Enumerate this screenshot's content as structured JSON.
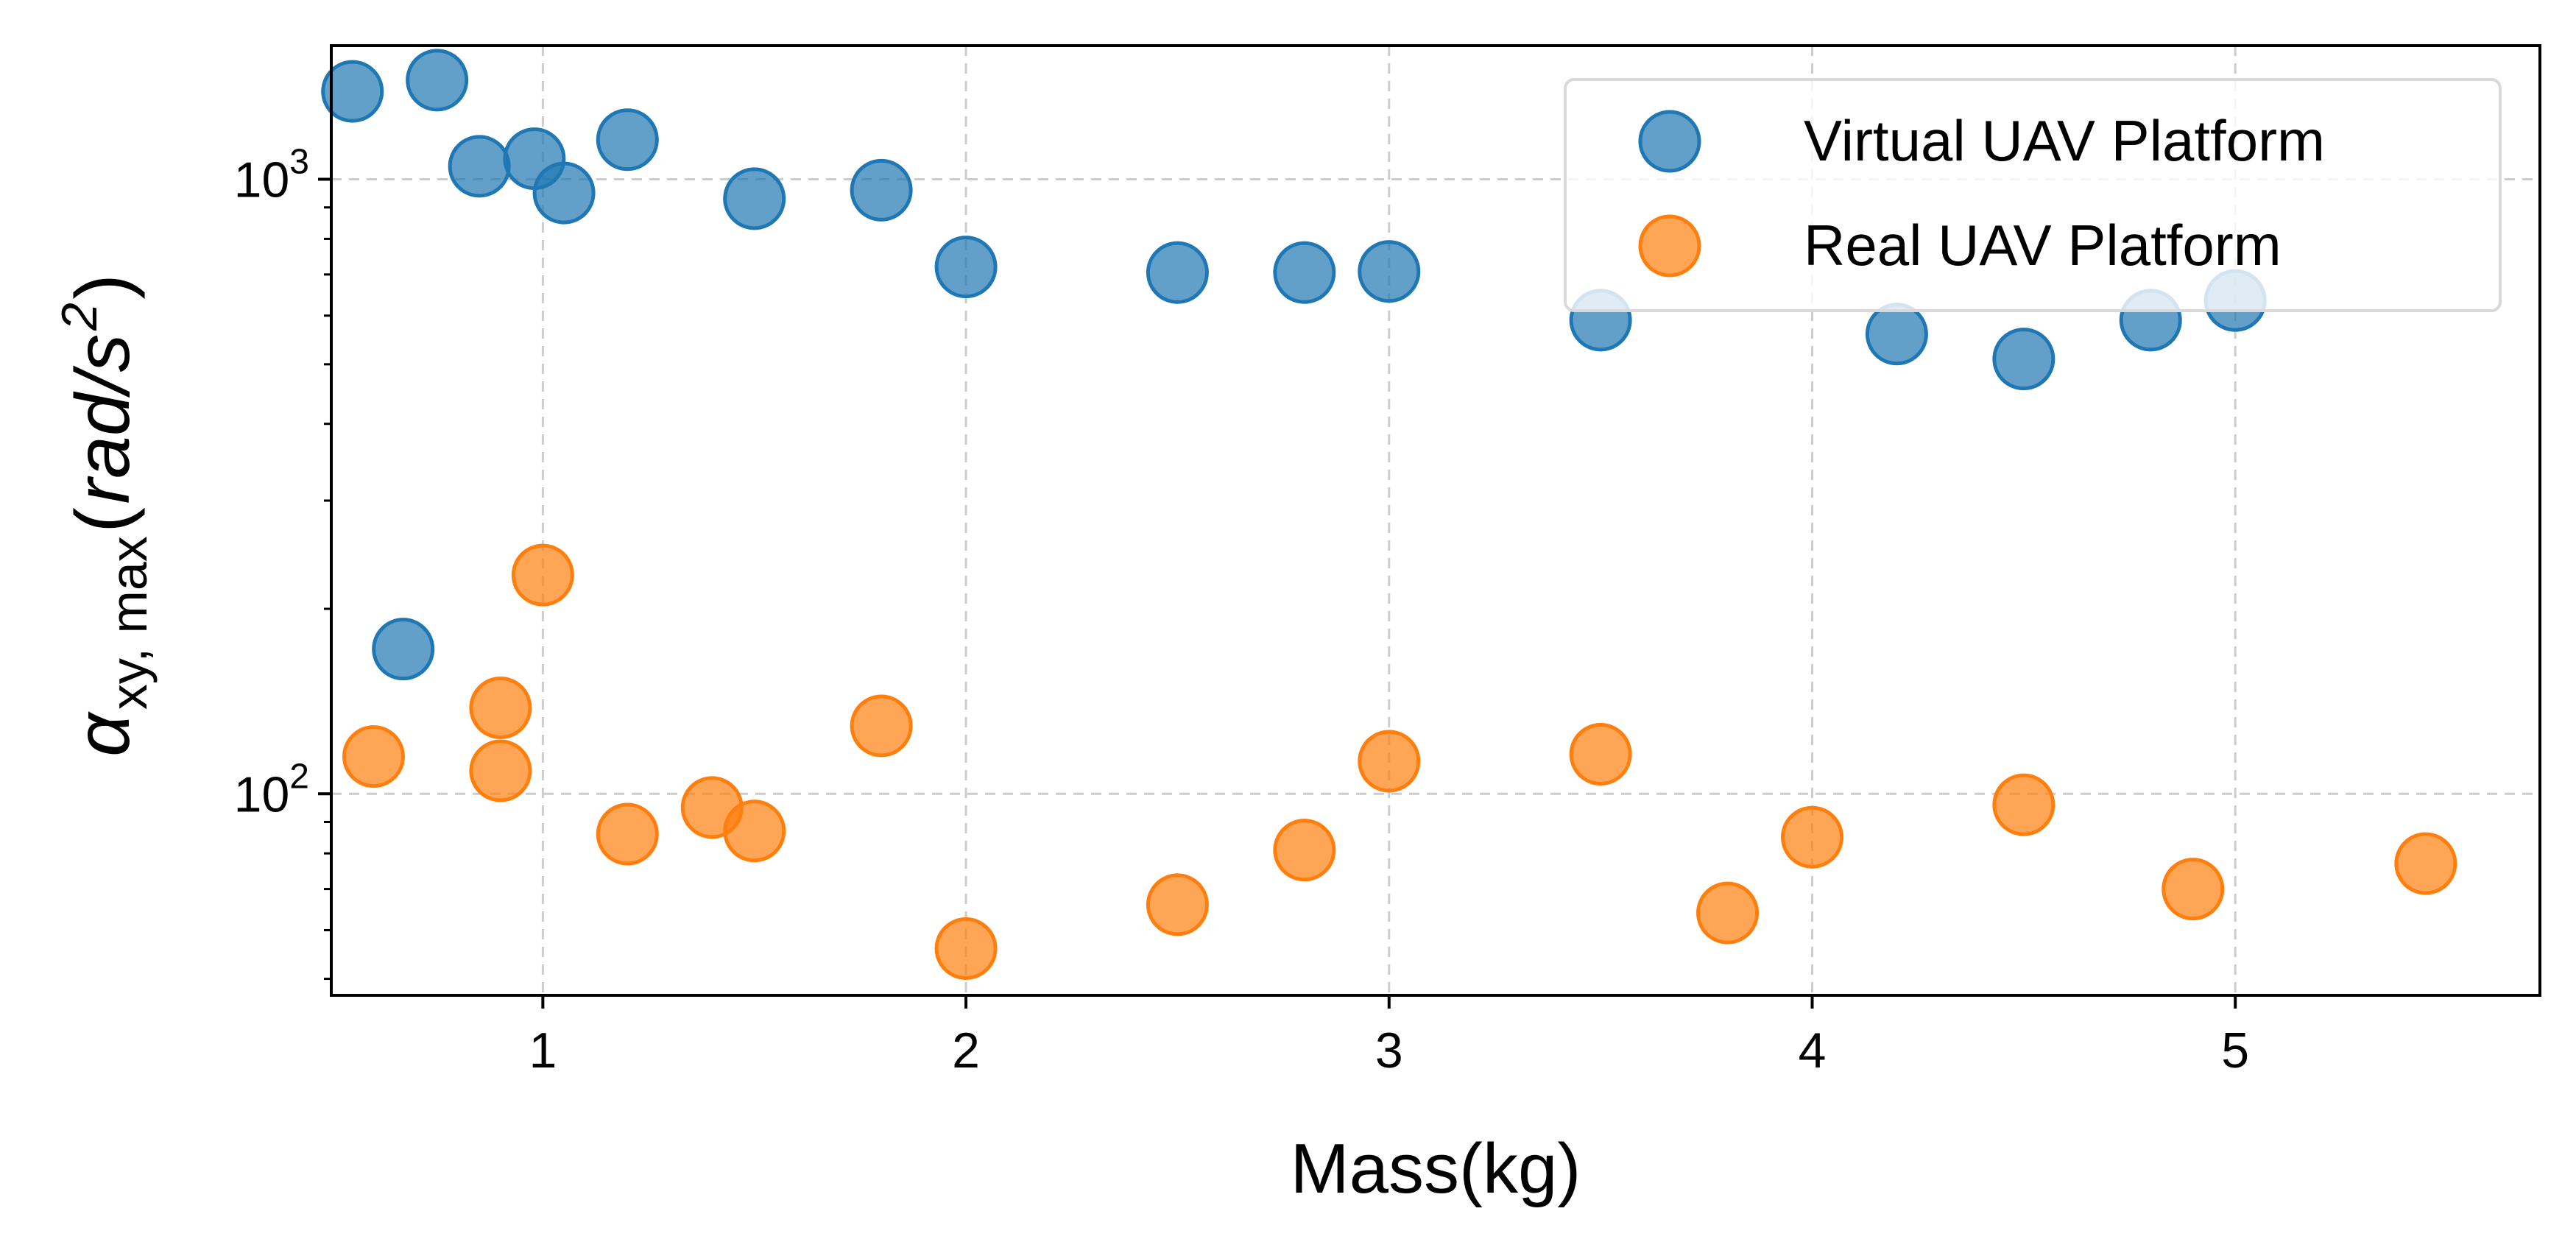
{
  "chart_data": {
    "type": "scatter",
    "title": "",
    "xlabel": "Mass(kg)",
    "ylabel": {
      "base": "α",
      "subscript": "xy, max",
      "unit_prefix": "(",
      "unit_italic": "rad/s",
      "unit_power": "2",
      "unit_suffix": ")"
    },
    "xlim": [
      0.5,
      5.72
    ],
    "ylim": [
      47,
      1650
    ],
    "yscale": "log",
    "grid": true,
    "legend_position": "top-right",
    "xticks": [
      "1",
      "2",
      "3",
      "4",
      "5"
    ],
    "yticks": [
      {
        "value": 100,
        "base": "10",
        "exp": "2"
      },
      {
        "value": 1000,
        "base": "10",
        "exp": "3"
      }
    ],
    "series": [
      {
        "name": "Virtual UAV Platform",
        "color": "#1f77b4",
        "points": [
          {
            "x": 0.55,
            "y": 1390
          },
          {
            "x": 0.67,
            "y": 172
          },
          {
            "x": 0.75,
            "y": 1450
          },
          {
            "x": 0.85,
            "y": 1050
          },
          {
            "x": 0.98,
            "y": 1080
          },
          {
            "x": 1.05,
            "y": 950
          },
          {
            "x": 1.2,
            "y": 1160
          },
          {
            "x": 1.5,
            "y": 930
          },
          {
            "x": 1.8,
            "y": 960
          },
          {
            "x": 2.0,
            "y": 720
          },
          {
            "x": 2.5,
            "y": 705
          },
          {
            "x": 2.8,
            "y": 705
          },
          {
            "x": 3.0,
            "y": 708
          },
          {
            "x": 3.5,
            "y": 590
          },
          {
            "x": 4.2,
            "y": 560
          },
          {
            "x": 4.5,
            "y": 510
          },
          {
            "x": 4.8,
            "y": 590
          },
          {
            "x": 5.0,
            "y": 635
          }
        ]
      },
      {
        "name": "Real UAV Platform",
        "color": "#ff7f0e",
        "points": [
          {
            "x": 0.6,
            "y": 115
          },
          {
            "x": 0.9,
            "y": 138
          },
          {
            "x": 0.9,
            "y": 109
          },
          {
            "x": 1.0,
            "y": 227
          },
          {
            "x": 1.2,
            "y": 86
          },
          {
            "x": 1.4,
            "y": 95
          },
          {
            "x": 1.5,
            "y": 87
          },
          {
            "x": 1.8,
            "y": 129
          },
          {
            "x": 2.0,
            "y": 56
          },
          {
            "x": 2.5,
            "y": 66
          },
          {
            "x": 2.8,
            "y": 81
          },
          {
            "x": 3.0,
            "y": 113
          },
          {
            "x": 3.5,
            "y": 116
          },
          {
            "x": 3.8,
            "y": 64
          },
          {
            "x": 4.0,
            "y": 85
          },
          {
            "x": 4.5,
            "y": 96
          },
          {
            "x": 4.9,
            "y": 70
          },
          {
            "x": 5.45,
            "y": 77
          }
        ]
      }
    ]
  }
}
